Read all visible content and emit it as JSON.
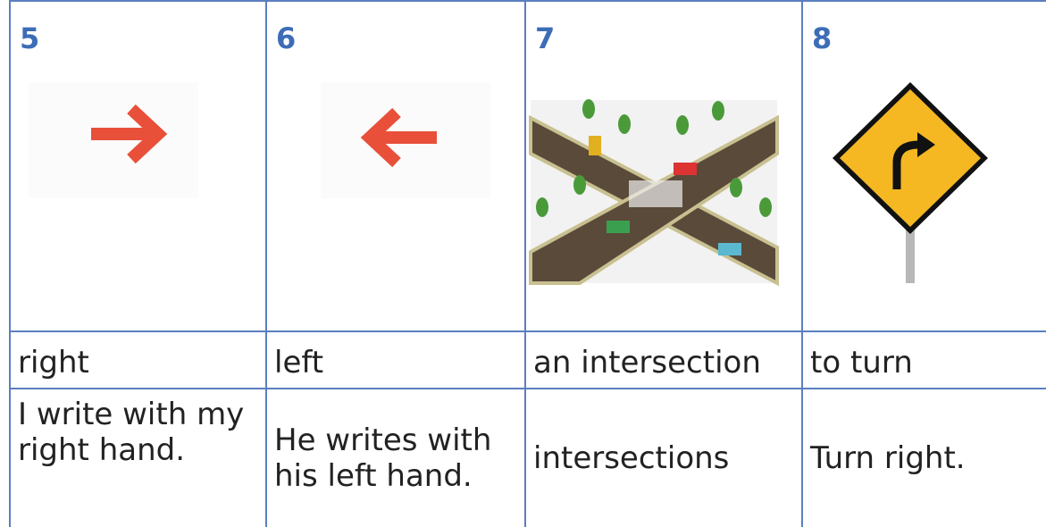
{
  "columns": [
    {
      "number": "5",
      "word": "right",
      "sentence": "I write with my right hand."
    },
    {
      "number": "6",
      "word": "left",
      "sentence": "He writes with his left hand."
    },
    {
      "number": "7",
      "word": "an intersection",
      "sentence": "intersections"
    },
    {
      "number": "8",
      "word": "to turn",
      "sentence": "Turn right."
    }
  ]
}
